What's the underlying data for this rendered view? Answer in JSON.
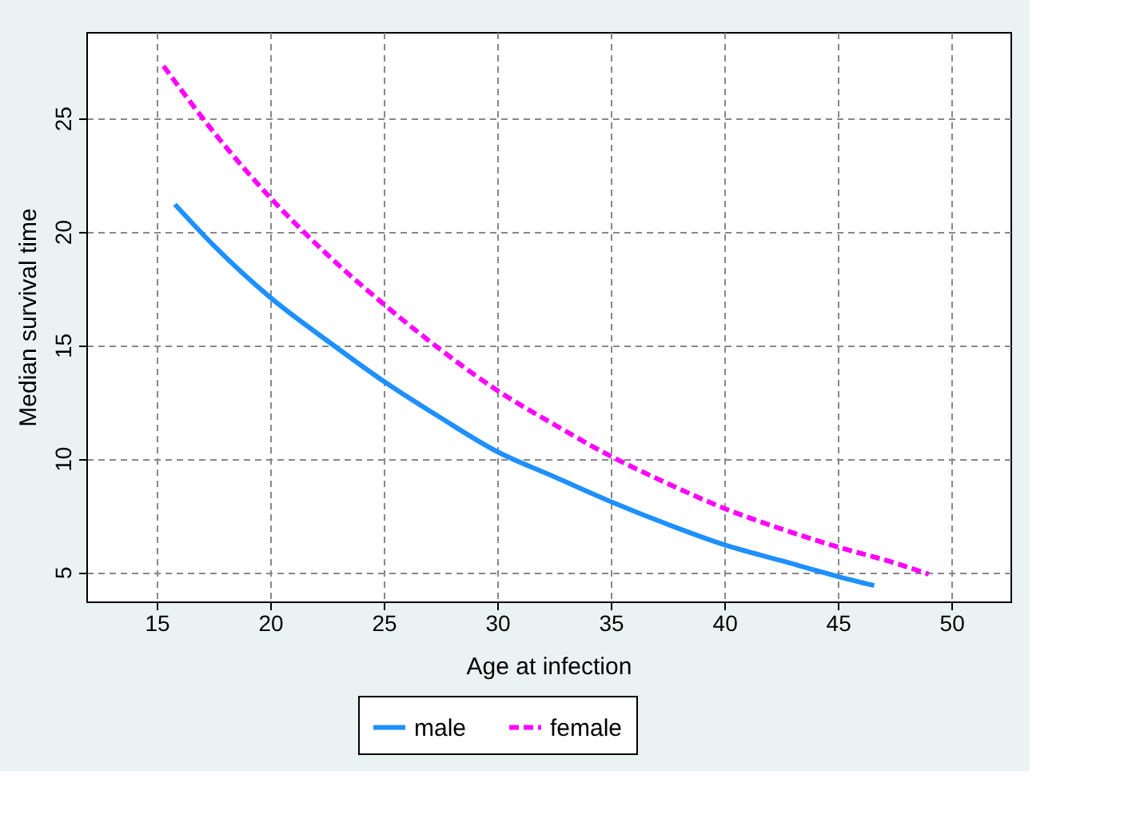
{
  "chart_data": {
    "type": "line",
    "xlabel": "Age at infection",
    "ylabel": "Median survival time",
    "xlim": [
      11.9,
      52.6
    ],
    "ylim": [
      3.7,
      28.8
    ],
    "xticks": [
      15,
      20,
      25,
      30,
      35,
      40,
      45,
      50
    ],
    "yticks": [
      5,
      10,
      15,
      20,
      25
    ],
    "grid": true,
    "legend": "bottom",
    "marker": "none",
    "series": [
      {
        "name": "male",
        "color": "#1e90ff",
        "line_style": "solid",
        "x": [
          15.8,
          17.5,
          20,
          22.5,
          25,
          27.5,
          30,
          32.5,
          35,
          37.5,
          40,
          42.5,
          45,
          46.6
        ],
        "values": [
          21.2,
          19.4,
          17.1,
          15.2,
          13.4,
          11.8,
          10.3,
          9.2,
          8.1,
          7.1,
          6.2,
          5.5,
          4.8,
          4.4
        ]
      },
      {
        "name": "female",
        "color": "#ff00ff",
        "line_style": "dashed",
        "x": [
          15.3,
          17.5,
          20,
          22.5,
          25,
          27.5,
          30,
          32.5,
          35,
          37.5,
          40,
          42.5,
          45,
          47.5,
          49
        ],
        "values": [
          27.3,
          24.4,
          21.5,
          19.0,
          16.8,
          14.8,
          13.0,
          11.5,
          10.1,
          8.9,
          7.8,
          6.9,
          6.1,
          5.4,
          4.9
        ]
      }
    ]
  }
}
